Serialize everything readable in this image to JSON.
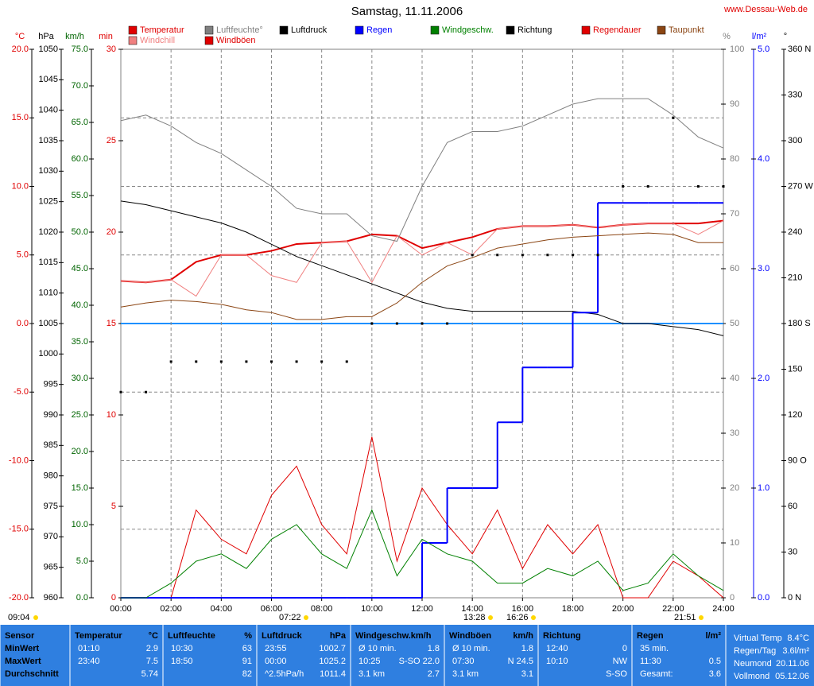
{
  "chart_data": {
    "type": "line",
    "title": "Samstag, 11.11.2006",
    "site": "www.Dessau-Web.de",
    "grid": true,
    "x": [
      0,
      1,
      2,
      3,
      4,
      5,
      6,
      7,
      8,
      9,
      10,
      11,
      12,
      13,
      14,
      15,
      16,
      17,
      18,
      19,
      20,
      21,
      22,
      23,
      24
    ],
    "xlim": [
      0,
      24
    ],
    "xticks": [
      {
        "value": 0,
        "label": "00:00"
      },
      {
        "value": 2,
        "label": "02:00"
      },
      {
        "value": 4,
        "label": "04:00"
      },
      {
        "value": 6,
        "label": "06:00"
      },
      {
        "value": 8,
        "label": "08:00"
      },
      {
        "value": 10,
        "label": "10:00"
      },
      {
        "value": 12,
        "label": "12:00"
      },
      {
        "value": 14,
        "label": "14:00"
      },
      {
        "value": 16,
        "label": "16:00"
      },
      {
        "value": 18,
        "label": "18:00"
      },
      {
        "value": 20,
        "label": "20:00"
      },
      {
        "value": 22,
        "label": "22:00"
      },
      {
        "value": 24,
        "label": "24:00"
      }
    ],
    "axes": {
      "C": {
        "label": "°C",
        "color": "#e00000",
        "ylim": [
          -20,
          20
        ],
        "yticks": [
          {
            "value": -20,
            "label": "-20.0"
          },
          {
            "value": -15,
            "label": "-15.0"
          },
          {
            "value": -10,
            "label": "-10.0"
          },
          {
            "value": -5,
            "label": "-5.0"
          },
          {
            "value": 0,
            "label": "0.0"
          },
          {
            "value": 5,
            "label": "5.0"
          },
          {
            "value": 10,
            "label": "10.0"
          },
          {
            "value": 15,
            "label": "15.0"
          },
          {
            "value": 20,
            "label": "20.0"
          }
        ]
      },
      "hPa": {
        "label": "hPa",
        "color": "#000000",
        "ylim": [
          960,
          1050
        ],
        "yticks": [
          960,
          965,
          970,
          975,
          980,
          985,
          990,
          995,
          1000,
          1005,
          1010,
          1015,
          1020,
          1025,
          1030,
          1035,
          1040,
          1045,
          1050
        ]
      },
      "kmh": {
        "label": "km/h",
        "color": "#006400",
        "ylim": [
          0,
          75
        ],
        "yticks": [
          {
            "value": 0,
            "label": "0.0"
          },
          {
            "value": 5,
            "label": "5.0"
          },
          {
            "value": 10,
            "label": "10.0"
          },
          {
            "value": 15,
            "label": "15.0"
          },
          {
            "value": 20,
            "label": "20.0"
          },
          {
            "value": 25,
            "label": "25.0"
          },
          {
            "value": 30,
            "label": "30.0"
          },
          {
            "value": 35,
            "label": "35.0"
          },
          {
            "value": 40,
            "label": "40.0"
          },
          {
            "value": 45,
            "label": "45.0"
          },
          {
            "value": 50,
            "label": "50.0"
          },
          {
            "value": 55,
            "label": "55.0"
          },
          {
            "value": 60,
            "label": "60.0"
          },
          {
            "value": 65,
            "label": "65.0"
          },
          {
            "value": 70,
            "label": "70.0"
          },
          {
            "value": 75,
            "label": "75.0"
          }
        ]
      },
      "min": {
        "label": "min",
        "color": "#e00000",
        "ylim": [
          0,
          30
        ],
        "yticks": [
          0,
          5,
          10,
          15,
          20,
          25,
          30
        ]
      },
      "pct": {
        "label": "%",
        "color": "#808080",
        "ylim": [
          0,
          100
        ],
        "yticks": [
          0,
          10,
          20,
          30,
          40,
          50,
          60,
          70,
          80,
          90,
          100
        ]
      },
      "rain": {
        "label": "l/m²",
        "color": "#0000ff",
        "ylim": [
          0,
          5
        ],
        "yticks": [
          {
            "value": 0,
            "label": "0.0"
          },
          {
            "value": 1,
            "label": "1.0"
          },
          {
            "value": 2,
            "label": "2.0"
          },
          {
            "value": 3,
            "label": "3.0"
          },
          {
            "value": 4,
            "label": "4.0"
          },
          {
            "value": 5,
            "label": "5.0"
          }
        ]
      },
      "deg": {
        "label": "°",
        "color": "#000000",
        "ylim": [
          0,
          360
        ],
        "yticks": [
          {
            "value": 0,
            "label": "0 N"
          },
          {
            "value": 30,
            "label": "30"
          },
          {
            "value": 60,
            "label": "60"
          },
          {
            "value": 90,
            "label": "90 O"
          },
          {
            "value": 120,
            "label": "120"
          },
          {
            "value": 150,
            "label": "150"
          },
          {
            "value": 180,
            "label": "180 S"
          },
          {
            "value": 210,
            "label": "210"
          },
          {
            "value": 240,
            "label": "240"
          },
          {
            "value": 270,
            "label": "270 W"
          },
          {
            "value": 300,
            "label": "300"
          },
          {
            "value": 330,
            "label": "330"
          },
          {
            "value": 360,
            "label": "360 N"
          }
        ]
      }
    },
    "series": [
      {
        "name": "Temperatur",
        "color": "#e00000",
        "axis": "C",
        "style": "line",
        "width": 2,
        "values": [
          3.1,
          3.0,
          3.2,
          4.5,
          5.0,
          5.0,
          5.3,
          5.8,
          5.9,
          6.0,
          6.5,
          6.4,
          5.5,
          5.9,
          6.3,
          6.9,
          7.1,
          7.1,
          7.2,
          7.0,
          7.2,
          7.3,
          7.3,
          7.3,
          7.5
        ]
      },
      {
        "name": "Windchill",
        "color": "#f08080",
        "axis": "C",
        "style": "line",
        "width": 1,
        "values": [
          3.1,
          3.0,
          3.2,
          2.0,
          5.0,
          5.0,
          3.5,
          3.0,
          5.9,
          6.0,
          3.0,
          6.4,
          5.0,
          5.9,
          5.0,
          6.9,
          7.1,
          7.1,
          7.2,
          7.0,
          7.2,
          7.3,
          7.3,
          6.5,
          7.5
        ]
      },
      {
        "name": "Luftfeuchte°",
        "color": "#808080",
        "axis": "pct",
        "style": "line",
        "width": 1,
        "values": [
          87,
          88,
          86,
          83,
          81,
          78,
          75,
          71,
          70,
          70,
          66,
          65,
          75,
          83,
          85,
          85,
          86,
          88,
          90,
          91,
          91,
          91,
          88,
          84,
          82
        ]
      },
      {
        "name": "Windböen",
        "color": "#e00000",
        "axis": "kmh",
        "style": "line",
        "width": 1,
        "values": [
          0,
          0,
          0,
          12,
          8,
          6,
          14,
          18,
          10,
          6,
          22,
          5,
          15,
          10,
          6,
          12,
          4,
          10,
          6,
          10,
          0,
          0,
          5,
          3,
          0
        ]
      },
      {
        "name": "Luftdruck",
        "color": "#000000",
        "axis": "hPa",
        "style": "line",
        "width": 1,
        "values": [
          1025.1,
          1024.5,
          1023.5,
          1022.5,
          1021.5,
          1020,
          1018,
          1016,
          1014.5,
          1013,
          1011.5,
          1010,
          1008.5,
          1007.5,
          1007,
          1007,
          1007,
          1007,
          1007,
          1006.5,
          1005,
          1005,
          1004.5,
          1004,
          1003
        ]
      },
      {
        "name": "Regen",
        "color": "#0000ff",
        "axis": "rain",
        "style": "step",
        "width": 2,
        "values": [
          0,
          0,
          0,
          0,
          0,
          0,
          0,
          0,
          0,
          0,
          0,
          0,
          0.5,
          1.0,
          1.0,
          1.6,
          2.1,
          2.1,
          2.6,
          3.6,
          3.6,
          3.6,
          3.6,
          3.6,
          3.6
        ]
      },
      {
        "name": "Windgeschw.",
        "color": "#008000",
        "axis": "kmh",
        "style": "line",
        "width": 1,
        "values": [
          0,
          0,
          2,
          5,
          6,
          4,
          8,
          10,
          6,
          4,
          12,
          3,
          8,
          6,
          5,
          2,
          2,
          4,
          3,
          5,
          1,
          2,
          6,
          3,
          1
        ]
      },
      {
        "name": "Richtung",
        "color": "#000000",
        "axis": "deg",
        "style": "dots",
        "width": 1,
        "values": [
          135,
          135,
          155,
          155,
          155,
          155,
          155,
          155,
          155,
          155,
          180,
          180,
          180,
          180,
          225,
          225,
          225,
          225,
          225,
          225,
          270,
          270,
          315,
          270,
          270
        ]
      },
      {
        "name": "Regendauer",
        "color": "#e00000",
        "axis": "min",
        "style": "line",
        "width": 1,
        "values": [
          null,
          null,
          null,
          null,
          null,
          null,
          null,
          null,
          null,
          null,
          null,
          null,
          null,
          null,
          null,
          null,
          null,
          null,
          null,
          null,
          null,
          null,
          null,
          null,
          null
        ]
      },
      {
        "name": "Taupunkt",
        "color": "#8b4513",
        "axis": "C",
        "style": "line",
        "width": 1,
        "values": [
          1.2,
          1.5,
          1.7,
          1.6,
          1.4,
          1.0,
          0.8,
          0.3,
          0.3,
          0.5,
          0.5,
          1.5,
          3.0,
          4.2,
          4.8,
          5.5,
          5.8,
          6.1,
          6.3,
          6.4,
          6.5,
          6.6,
          6.5,
          5.9,
          5.9
        ]
      }
    ]
  },
  "sun_times": [
    "09:04",
    "07:22",
    "13:28",
    "16:26",
    "21:51"
  ],
  "table": {
    "panels": [
      {
        "header": [
          "Sensor"
        ],
        "rows": [
          [
            "MinWert"
          ],
          [
            "MaxWert"
          ],
          [
            "Durchschnitt"
          ]
        ]
      },
      {
        "header": [
          "Temperatur",
          "°C"
        ],
        "rows": [
          [
            "01:10",
            "2.9"
          ],
          [
            "23:40",
            "7.5"
          ],
          [
            "5.74"
          ]
        ]
      },
      {
        "header": [
          "Luftfeuchte",
          "%"
        ],
        "rows": [
          [
            "10:30",
            "63"
          ],
          [
            "18:50",
            "91"
          ],
          [
            "82"
          ]
        ]
      },
      {
        "header": [
          "Luftdruck",
          "hPa"
        ],
        "rows": [
          [
            "23:55",
            "1002.7"
          ],
          [
            "00:00",
            "1025.2"
          ],
          [
            "^2.5hPa/h",
            "1011.4"
          ]
        ]
      },
      {
        "header": [
          "Windgeschw.km/h"
        ],
        "rows": [
          [
            "Ø 10 min.",
            "1.8"
          ],
          [
            "10:25",
            "S-SO 22.0"
          ],
          [
            "3.1 km",
            "2.7"
          ]
        ]
      },
      {
        "header": [
          "Windböen",
          "km/h"
        ],
        "rows": [
          [
            "Ø 10 min.",
            "1.8"
          ],
          [
            "07:30",
            "N 24.5"
          ],
          [
            "3.1 km",
            "3.1"
          ]
        ]
      },
      {
        "header": [
          "Richtung"
        ],
        "rows": [
          [
            "12:40",
            "0"
          ],
          [
            "10:10",
            "NW"
          ],
          [
            "S-SO"
          ]
        ]
      },
      {
        "header": [
          "Regen",
          "l/m²"
        ],
        "rows": [
          [
            "35 min."
          ],
          [
            "11:30",
            "0.5"
          ],
          [
            "Gesamt:",
            "3.6"
          ]
        ]
      },
      {
        "rows": [
          [
            "Virtual Temp",
            "8.4°C"
          ],
          [
            "Regen/Tag",
            "3.6l/m²"
          ],
          [
            "Neumond",
            "20.11.06"
          ],
          [
            "Vollmond",
            "05.12.06"
          ]
        ]
      }
    ]
  }
}
